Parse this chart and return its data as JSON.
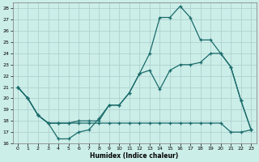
{
  "xlabel": "Humidex (Indice chaleur)",
  "bg_color": "#cceee8",
  "grid_color": "#aacccc",
  "line_color": "#1a6b6b",
  "xlim": [
    -0.5,
    23.5
  ],
  "ylim": [
    16,
    28.5
  ],
  "xticks": [
    0,
    1,
    2,
    3,
    4,
    5,
    6,
    7,
    8,
    9,
    10,
    11,
    12,
    13,
    14,
    15,
    16,
    17,
    18,
    19,
    20,
    21,
    22,
    23
  ],
  "yticks": [
    16,
    17,
    18,
    19,
    20,
    21,
    22,
    23,
    24,
    25,
    26,
    27,
    28
  ],
  "series_max_x": [
    0,
    1,
    2,
    3,
    4,
    5,
    6,
    7,
    8,
    9,
    10,
    11,
    12,
    13,
    14,
    15,
    16,
    17,
    18,
    19,
    20,
    21,
    22,
    23
  ],
  "series_max_y": [
    21,
    20,
    18.5,
    17.8,
    16.4,
    16.4,
    17.0,
    17.2,
    18.2,
    19.4,
    19.4,
    20.5,
    22.2,
    24.0,
    27.2,
    27.2,
    28.2,
    27.2,
    25.2,
    25.2,
    24.0,
    22.8,
    19.8,
    17.2
  ],
  "series_avg_x": [
    0,
    1,
    2,
    3,
    4,
    5,
    6,
    7,
    8,
    9,
    10,
    11,
    12,
    13,
    14,
    15,
    16,
    17,
    18,
    19,
    20,
    21,
    22,
    23
  ],
  "series_avg_y": [
    21,
    20,
    18.5,
    17.8,
    17.8,
    17.8,
    18.0,
    18.0,
    18.0,
    19.4,
    19.4,
    20.5,
    22.2,
    22.5,
    20.8,
    22.5,
    23.0,
    23.0,
    23.2,
    24.0,
    24.0,
    22.8,
    19.8,
    17.2
  ],
  "series_min_x": [
    0,
    1,
    2,
    3,
    4,
    5,
    6,
    7,
    8,
    9,
    10,
    11,
    12,
    13,
    14,
    15,
    16,
    17,
    18,
    19,
    20,
    21,
    22,
    23
  ],
  "series_min_y": [
    21,
    20,
    18.5,
    17.8,
    17.8,
    17.8,
    17.8,
    17.8,
    17.8,
    17.8,
    17.8,
    17.8,
    17.8,
    17.8,
    17.8,
    17.8,
    17.8,
    17.8,
    17.8,
    17.8,
    17.8,
    17.0,
    17.0,
    17.2
  ]
}
